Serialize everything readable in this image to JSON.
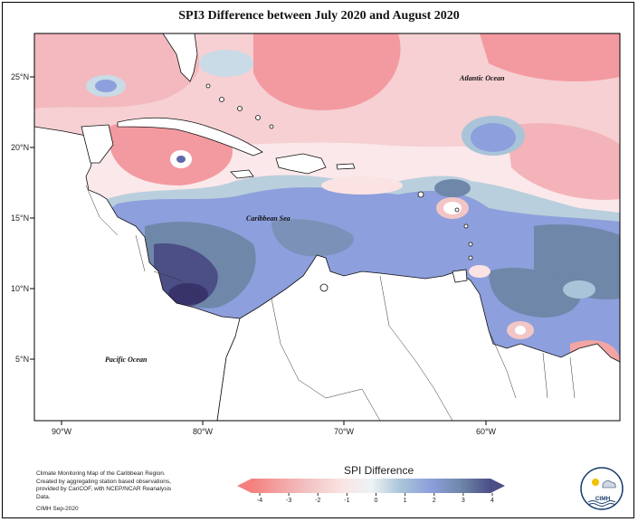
{
  "title": "SPI3 Difference between July 2020 and August 2020",
  "labels": {
    "atlantic": "Atlantic Ocean",
    "caribbean": "Caribbean Sea",
    "pacific": "Pacific Ocean"
  },
  "lat_ticks": [
    "25°N",
    "20°N",
    "15°N",
    "10°N",
    "5°N"
  ],
  "lon_ticks": [
    "90°W",
    "80°W",
    "70°W",
    "60°W"
  ],
  "legend": {
    "title": "SPI Difference",
    "ticks": [
      "-4",
      "-3",
      "-2",
      "-1",
      "0",
      "1",
      "2",
      "3",
      "4"
    ],
    "colors": [
      "#f57f7f",
      "#f3a5a5",
      "#f3c6c6",
      "#fbe3e3",
      "#d9e8ee",
      "#a9c4d8",
      "#8d9fdc",
      "#6f87a9",
      "#4b4f86"
    ]
  },
  "footnote": {
    "line1": "Climate Monitoring Map of the Caribbean Region.",
    "line2": "Created by aggregating station based observations,",
    "line3": "provided by CariCOF, with NCEP/NCAR Reanalysis Data.",
    "date": "CIMH Sep-2020"
  },
  "logo_text": "CIMH"
}
